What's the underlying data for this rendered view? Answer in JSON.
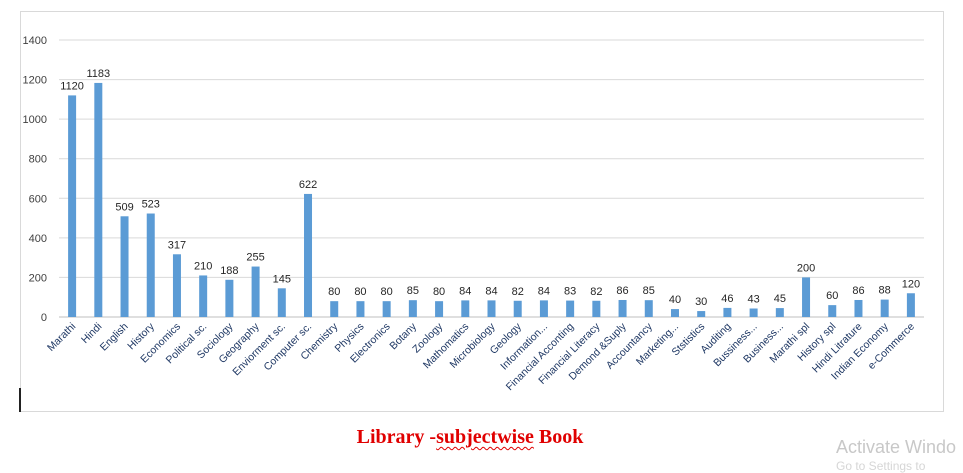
{
  "chart_data": {
    "type": "bar",
    "title": "",
    "xlabel": "",
    "ylabel": "",
    "ylim": [
      0,
      1400
    ],
    "yticks": [
      0,
      200,
      400,
      600,
      800,
      1000,
      1200,
      1400
    ],
    "grid": true,
    "legend": "none",
    "bar_color": "#5b9bd5",
    "categories": [
      "Marathi",
      "Hindi",
      "English",
      "History",
      "Economics",
      "Political sc.",
      "Sociology",
      "Geography",
      "Enviorment sc.",
      "Computer sc.",
      "Chemistry",
      "Physics",
      "Electronics",
      "Botany",
      "Zoology",
      "Mathomatics",
      "Microbiology",
      "Geology",
      "Information...",
      "Financial Acconting",
      "Financial Literacy",
      "Demond &Suply",
      "Accountancy",
      "Marketing...",
      "Ststistics",
      "Auditing",
      "Bussiness...",
      "Business...",
      "Marathi spl",
      "History spl",
      "Hindi Litrature",
      "Indian Economy",
      "e-Commerce"
    ],
    "values": [
      1120,
      1183,
      509,
      523,
      317,
      210,
      188,
      255,
      145,
      622,
      80,
      80,
      80,
      85,
      80,
      84,
      84,
      82,
      84,
      83,
      82,
      86,
      85,
      40,
      30,
      46,
      43,
      45,
      200,
      60,
      86,
      88,
      120
    ]
  },
  "caption": {
    "prefix": "Library -",
    "underlined": "subjectwise",
    "suffix": " Book"
  },
  "watermark": {
    "line1": "Activate Windo",
    "line2": "Go to Settings to"
  }
}
